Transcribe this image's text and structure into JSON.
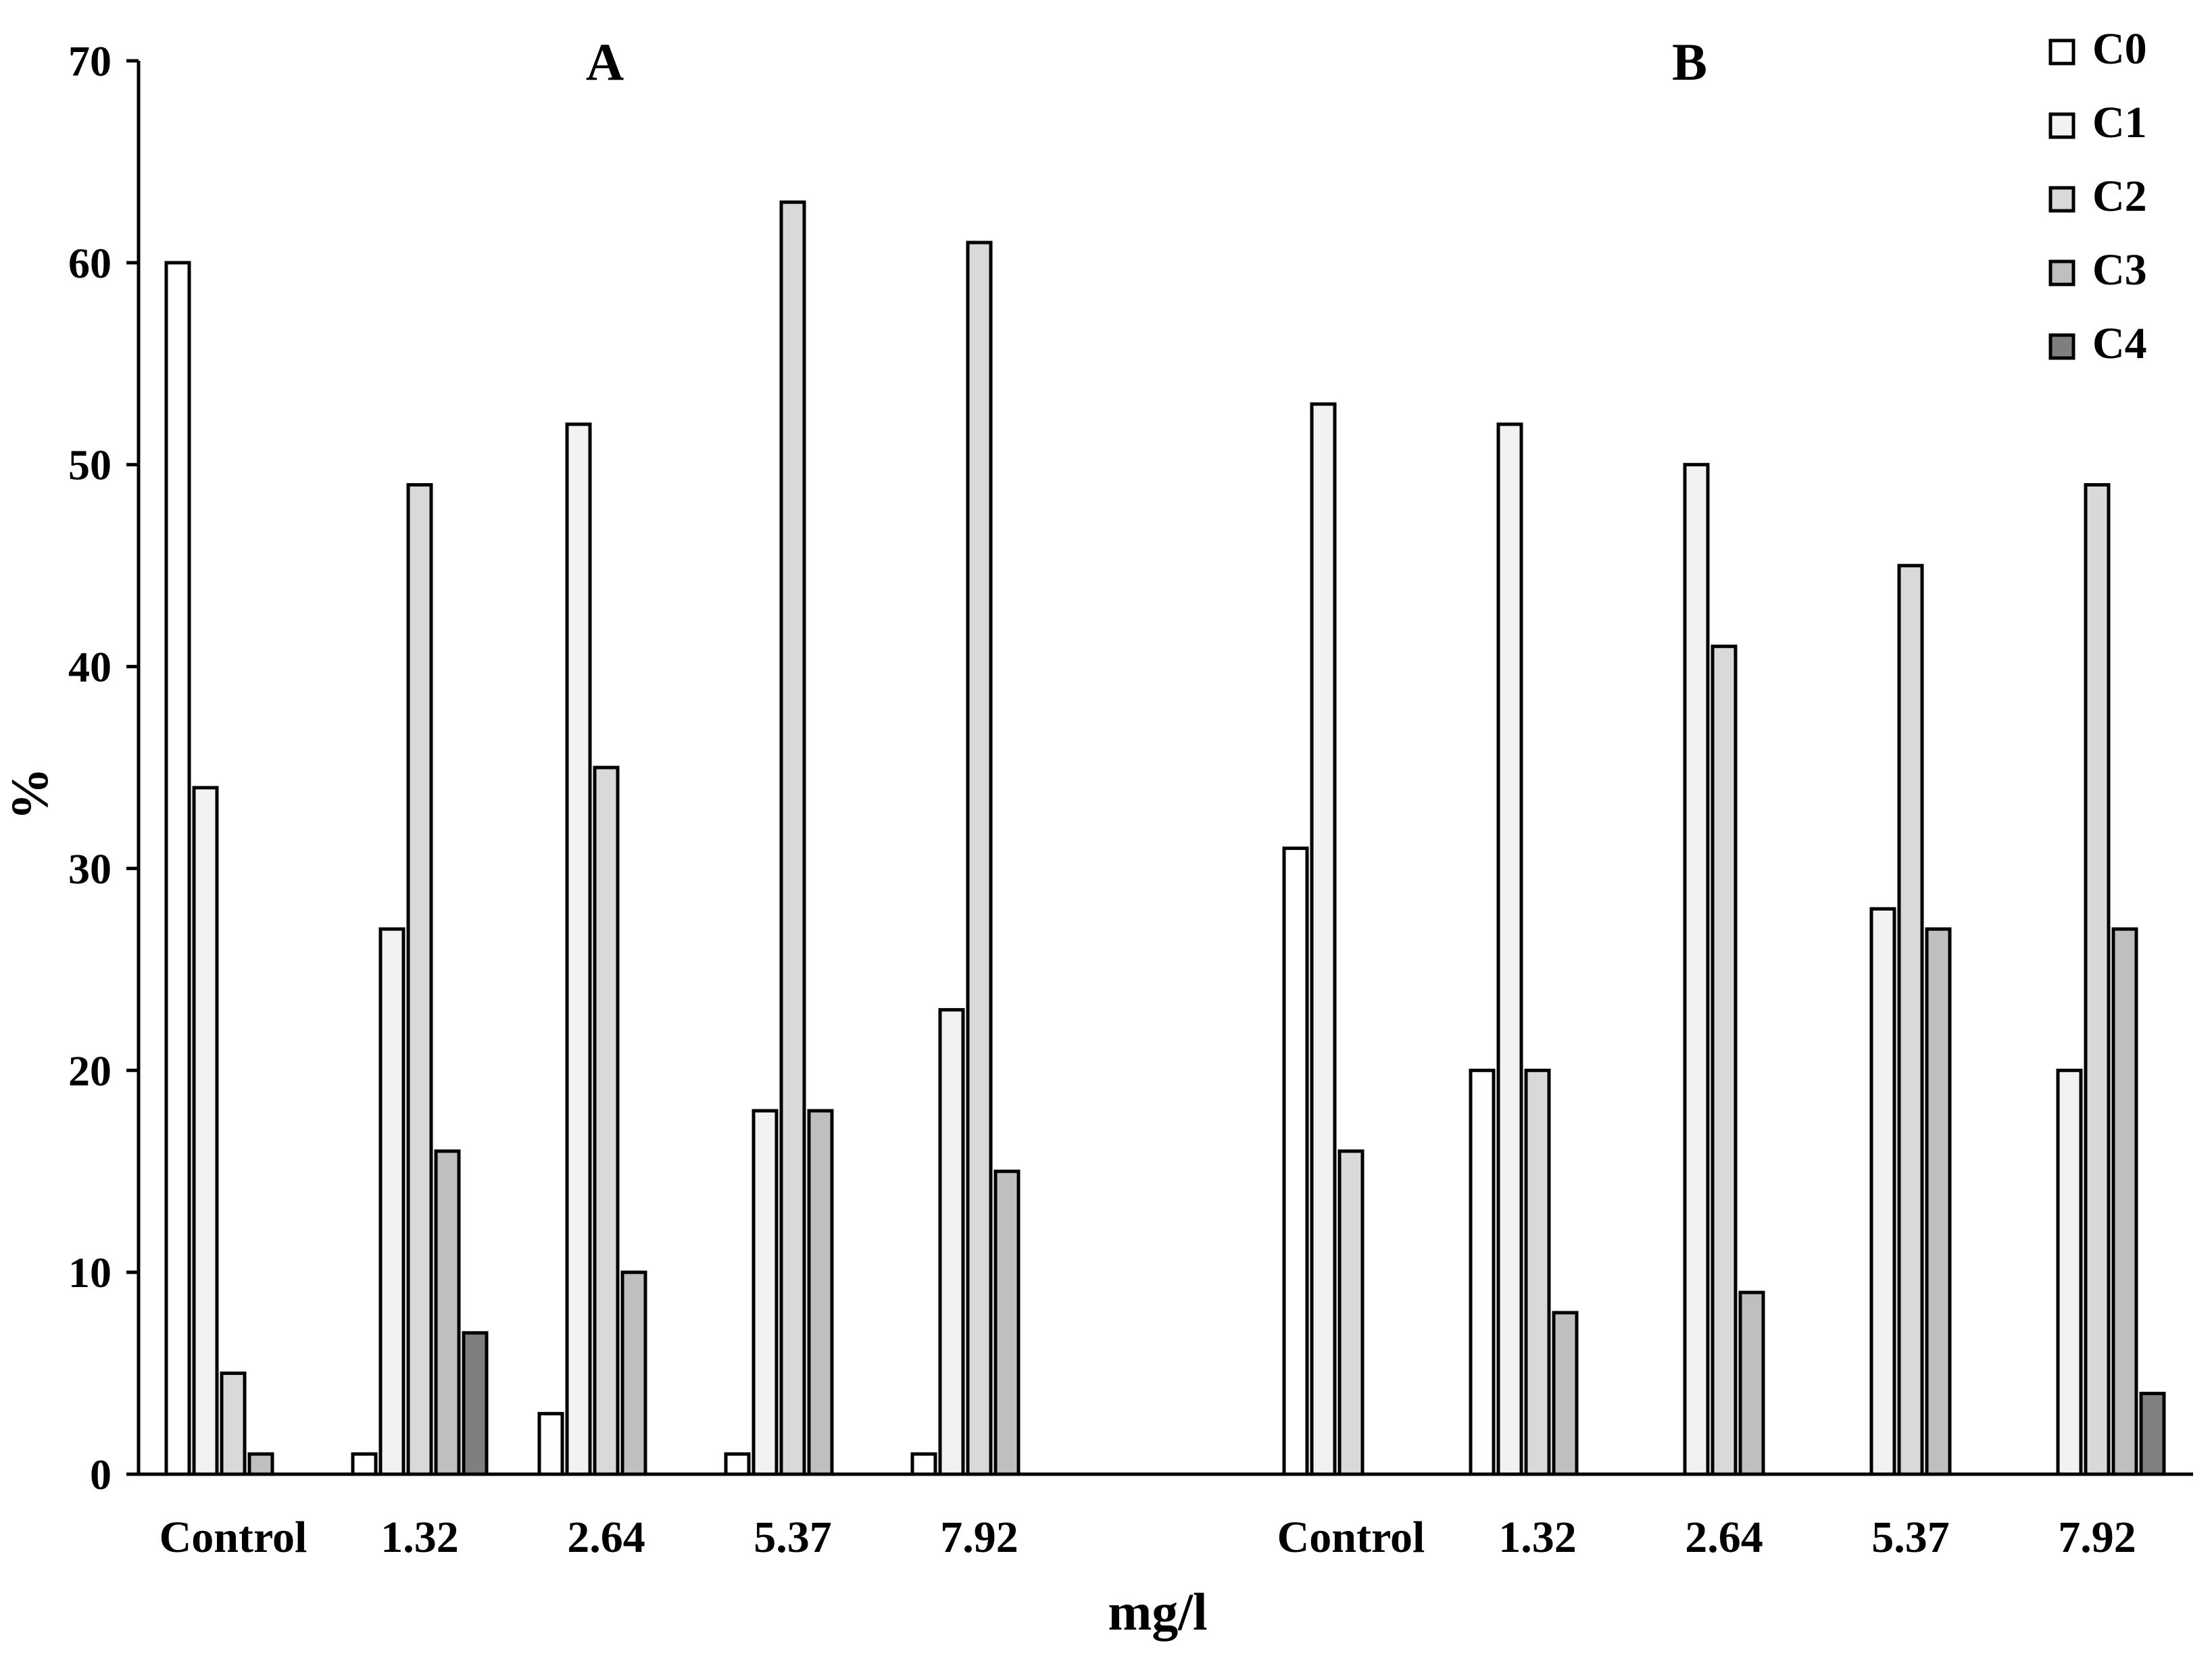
{
  "chart_data": {
    "type": "bar",
    "title": "",
    "xlabel": "mg/l",
    "ylabel": "%",
    "ylim": [
      0,
      70
    ],
    "yticks": [
      "0",
      "10",
      "20",
      "30",
      "40",
      "50",
      "60",
      "70"
    ],
    "grid": false,
    "legend_position": "top-right",
    "series_colors": {
      "C0": "#ffffff",
      "C1": "#f2f2f2",
      "C2": "#d9d9d9",
      "C3": "#bfbfbf",
      "C4": "#7f7f7f"
    },
    "panels": [
      {
        "label": "A",
        "categories": [
          "Control",
          "1.32",
          "2.64",
          "5.37",
          "7.92"
        ],
        "series": [
          {
            "name": "C0",
            "values": [
              60,
              1,
              3,
              1,
              1
            ]
          },
          {
            "name": "C1",
            "values": [
              34,
              27,
              52,
              18,
              23
            ]
          },
          {
            "name": "C2",
            "values": [
              5,
              49,
              35,
              63,
              61
            ]
          },
          {
            "name": "C3",
            "values": [
              1,
              16,
              10,
              18,
              15
            ]
          },
          {
            "name": "C4",
            "values": [
              0,
              7,
              0,
              0,
              0
            ]
          }
        ]
      },
      {
        "label": "B",
        "categories": [
          "Control",
          "1.32",
          "2.64",
          "5.37",
          "7.92"
        ],
        "series": [
          {
            "name": "C0",
            "values": [
              31,
              20,
              0,
              0,
              0
            ]
          },
          {
            "name": "C1",
            "values": [
              53,
              52,
              50,
              28,
              20
            ]
          },
          {
            "name": "C2",
            "values": [
              16,
              20,
              41,
              45,
              49
            ]
          },
          {
            "name": "C3",
            "values": [
              0,
              8,
              9,
              27,
              27
            ]
          },
          {
            "name": "C4",
            "values": [
              0,
              0,
              0,
              0,
              4
            ]
          }
        ]
      }
    ],
    "legend": [
      "C0",
      "C1",
      "C2",
      "C3",
      "C4"
    ]
  }
}
